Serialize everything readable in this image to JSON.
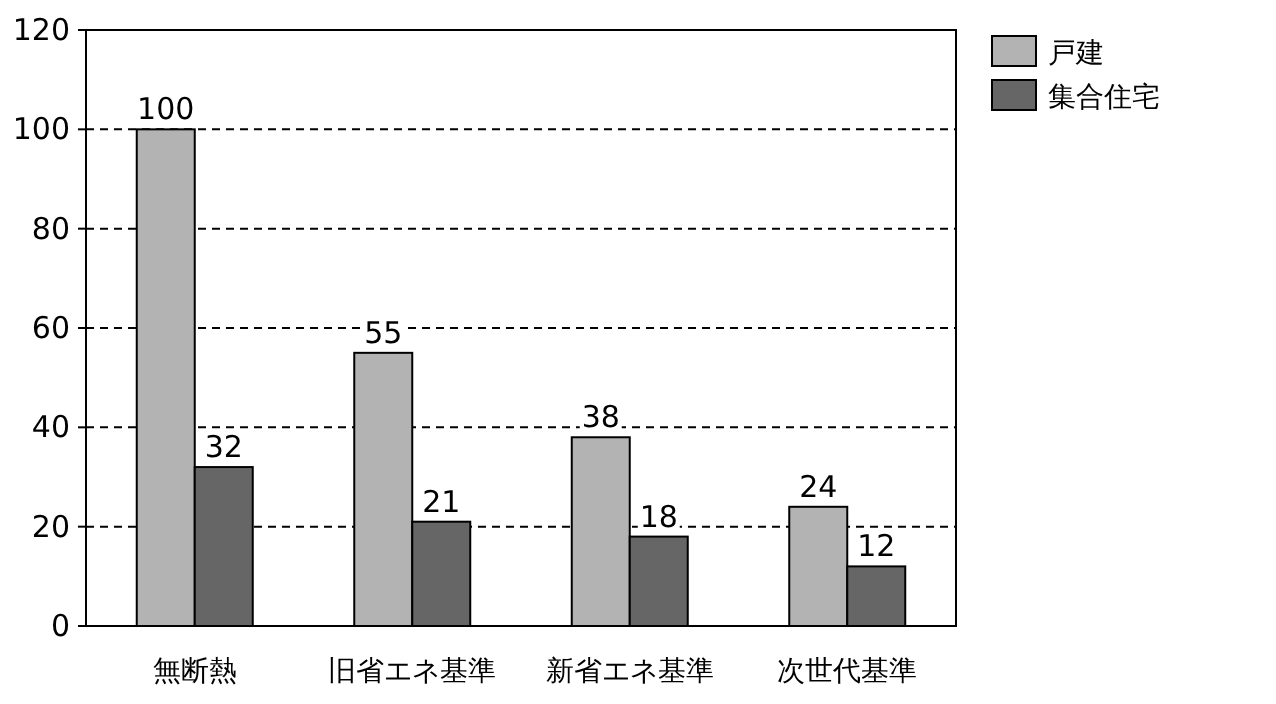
{
  "chart_data": {
    "type": "bar",
    "categories": [
      "無断熱",
      "旧省エネ基準",
      "新省エネ基準",
      "次世代基準"
    ],
    "series": [
      {
        "name": "戸建",
        "color": "#b3b3b3",
        "values": [
          100,
          55,
          38,
          24
        ]
      },
      {
        "name": "集合住宅",
        "color": "#666666",
        "values": [
          32,
          21,
          18,
          12
        ]
      }
    ],
    "ylim": [
      0,
      120
    ],
    "yticks": [
      0,
      20,
      40,
      60,
      80,
      100,
      120
    ],
    "grid": "y",
    "legend": "top right",
    "data_labels": true
  }
}
